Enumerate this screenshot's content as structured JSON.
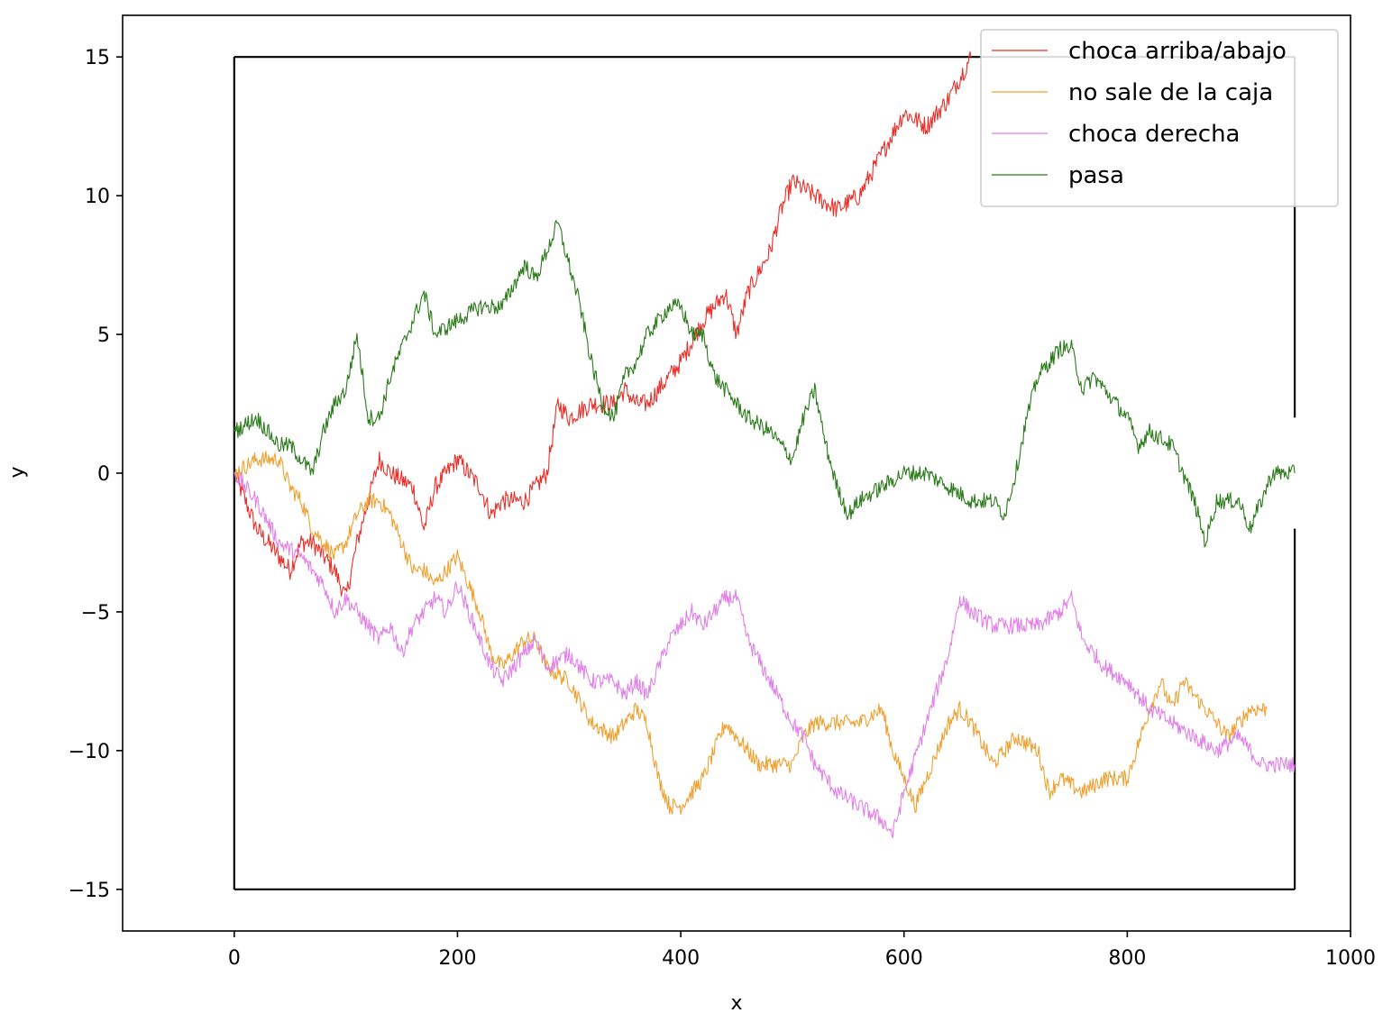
{
  "chart_data": {
    "type": "line",
    "title": "",
    "xlabel": "x",
    "ylabel": "y",
    "xlim": [
      -100,
      1000
    ],
    "ylim": [
      -16.5,
      16.5
    ],
    "xticks": [
      0,
      200,
      400,
      600,
      800,
      1000
    ],
    "xtick_labels": [
      "0",
      "200",
      "400",
      "600",
      "800",
      "1000"
    ],
    "yticks": [
      -15,
      -10,
      -5,
      0,
      5,
      10,
      15
    ],
    "ytick_labels": [
      "−15",
      "−10",
      "−5",
      "0",
      "5",
      "10",
      "15"
    ],
    "grid": false,
    "legend_position": "top-right",
    "box": {
      "color": "#000000",
      "x_left": 0,
      "x_right": 950,
      "y_bottom": -15,
      "y_top": 15,
      "right_gap": [
        -2,
        2
      ]
    },
    "series": [
      {
        "name": "choca arriba/abajo",
        "color": "#e8302a",
        "noise": 0.35,
        "x": [
          0,
          20,
          40,
          50,
          60,
          70,
          90,
          100,
          110,
          120,
          130,
          140,
          160,
          170,
          180,
          190,
          200,
          210,
          220,
          230,
          240,
          260,
          280,
          290,
          300,
          320,
          340,
          350,
          360,
          370,
          380,
          400,
          420,
          440,
          450,
          460,
          480,
          490,
          500,
          520,
          540,
          560,
          580,
          600,
          620,
          640,
          660
        ],
        "y": [
          0,
          -2,
          -3,
          -3.5,
          -2.5,
          -2.5,
          -3.5,
          -4.5,
          -2.5,
          -1,
          0.5,
          0,
          -0.5,
          -2,
          -0.5,
          0,
          0.5,
          0,
          -0.5,
          -1.5,
          -1,
          -1,
          0,
          2.5,
          2,
          2.5,
          2.5,
          3,
          2.5,
          2.5,
          3,
          4,
          5.5,
          6.5,
          5,
          6.5,
          8,
          9.5,
          10.5,
          10,
          9.5,
          10,
          11.5,
          13,
          12.5,
          13.5,
          15
        ]
      },
      {
        "name": "no sale de la caja",
        "color": "#f0a030",
        "noise": 0.3,
        "x": [
          0,
          20,
          40,
          50,
          60,
          70,
          80,
          90,
          100,
          110,
          120,
          130,
          140,
          150,
          160,
          170,
          180,
          190,
          200,
          210,
          220,
          230,
          240,
          250,
          260,
          270,
          280,
          300,
          320,
          340,
          350,
          360,
          370,
          380,
          390,
          400,
          420,
          440,
          450,
          460,
          470,
          480,
          500,
          510,
          520,
          540,
          560,
          580,
          590,
          600,
          610,
          620,
          640,
          650,
          660,
          680,
          700,
          720,
          730,
          740,
          760,
          780,
          800,
          820,
          830,
          840,
          850,
          860,
          870,
          880,
          890,
          900,
          910,
          920,
          925
        ],
        "y": [
          0,
          0.5,
          0.5,
          -0.5,
          -1,
          -2,
          -2.5,
          -3,
          -2.5,
          -1.5,
          -1,
          -1,
          -1.5,
          -2.5,
          -3.5,
          -3.5,
          -4,
          -3.5,
          -3,
          -4,
          -5,
          -6.5,
          -7,
          -6.5,
          -6,
          -6,
          -7,
          -7.5,
          -9,
          -9.5,
          -9,
          -8.5,
          -9,
          -11,
          -12,
          -12,
          -11,
          -9,
          -9.5,
          -10,
          -10.5,
          -10.5,
          -10.5,
          -9.5,
          -9,
          -9,
          -9,
          -8.5,
          -10,
          -11,
          -12,
          -11,
          -9,
          -8.5,
          -9,
          -10.5,
          -9.5,
          -10,
          -11.5,
          -11,
          -11.5,
          -11,
          -11,
          -8.5,
          -7.5,
          -8.5,
          -7.5,
          -8,
          -8.5,
          -9,
          -9.5,
          -9,
          -8.5,
          -8.5,
          -8.5
        ]
      },
      {
        "name": "choca derecha",
        "color": "#e080e8",
        "noise": 0.3,
        "x": [
          0,
          20,
          40,
          60,
          80,
          90,
          100,
          120,
          130,
          140,
          150,
          160,
          170,
          180,
          190,
          200,
          210,
          220,
          230,
          240,
          250,
          260,
          270,
          280,
          300,
          320,
          340,
          350,
          360,
          370,
          380,
          390,
          400,
          410,
          420,
          430,
          440,
          450,
          460,
          480,
          500,
          510,
          520,
          540,
          560,
          580,
          590,
          600,
          620,
          640,
          650,
          660,
          680,
          700,
          720,
          740,
          750,
          760,
          780,
          800,
          820,
          840,
          860,
          880,
          900,
          920,
          940,
          950
        ],
        "y": [
          0,
          -1,
          -2.5,
          -3,
          -4,
          -5,
          -4.5,
          -5.5,
          -6,
          -5.5,
          -6.5,
          -5.5,
          -5,
          -4.5,
          -5,
          -4,
          -5,
          -6,
          -7,
          -7.5,
          -7,
          -6.5,
          -6,
          -7,
          -6.5,
          -7.5,
          -7.5,
          -8,
          -7.5,
          -8,
          -7,
          -6,
          -5.5,
          -5,
          -5.5,
          -5,
          -4.5,
          -4.5,
          -6,
          -7.5,
          -9,
          -9.5,
          -10.5,
          -11.5,
          -12,
          -12.5,
          -13,
          -11.5,
          -9,
          -6.5,
          -4.5,
          -5,
          -5.5,
          -5.5,
          -5.5,
          -5,
          -4.5,
          -6,
          -7,
          -7.5,
          -8.5,
          -9,
          -9.5,
          -10,
          -9.5,
          -10.5,
          -10.5,
          -10.5
        ]
      },
      {
        "name": "pasa",
        "color": "#2a7a1a",
        "noise": 0.3,
        "x": [
          0,
          20,
          40,
          50,
          60,
          70,
          80,
          90,
          100,
          110,
          120,
          130,
          140,
          150,
          160,
          170,
          180,
          200,
          220,
          240,
          260,
          270,
          280,
          290,
          300,
          310,
          320,
          330,
          340,
          350,
          360,
          370,
          380,
          390,
          400,
          410,
          420,
          430,
          440,
          460,
          480,
          500,
          510,
          520,
          530,
          540,
          550,
          560,
          580,
          600,
          620,
          640,
          660,
          680,
          690,
          700,
          710,
          720,
          730,
          740,
          750,
          760,
          770,
          780,
          800,
          810,
          820,
          840,
          850,
          860,
          870,
          880,
          890,
          900,
          910,
          920,
          930,
          940,
          950
        ],
        "y": [
          1.5,
          2,
          1,
          1,
          0.5,
          0,
          1.5,
          2.5,
          3,
          5,
          2,
          2,
          3.5,
          4.5,
          5.5,
          6.5,
          5,
          5.5,
          6,
          6,
          7.5,
          7,
          8,
          9,
          7.5,
          6,
          4,
          2.5,
          2,
          3.5,
          4,
          5,
          5.5,
          6,
          6,
          5,
          5,
          3.5,
          3,
          2,
          1.5,
          0.5,
          2,
          3,
          1,
          -0.5,
          -1.5,
          -1,
          -0.5,
          0,
          0,
          -0.5,
          -1,
          -1,
          -1.5,
          0,
          2,
          3.5,
          4,
          4.5,
          4.5,
          3,
          3.5,
          3,
          2,
          1,
          1.5,
          1,
          0,
          -1,
          -2.5,
          -1,
          -1,
          -1,
          -2,
          -1,
          0,
          0,
          0
        ]
      }
    ]
  }
}
